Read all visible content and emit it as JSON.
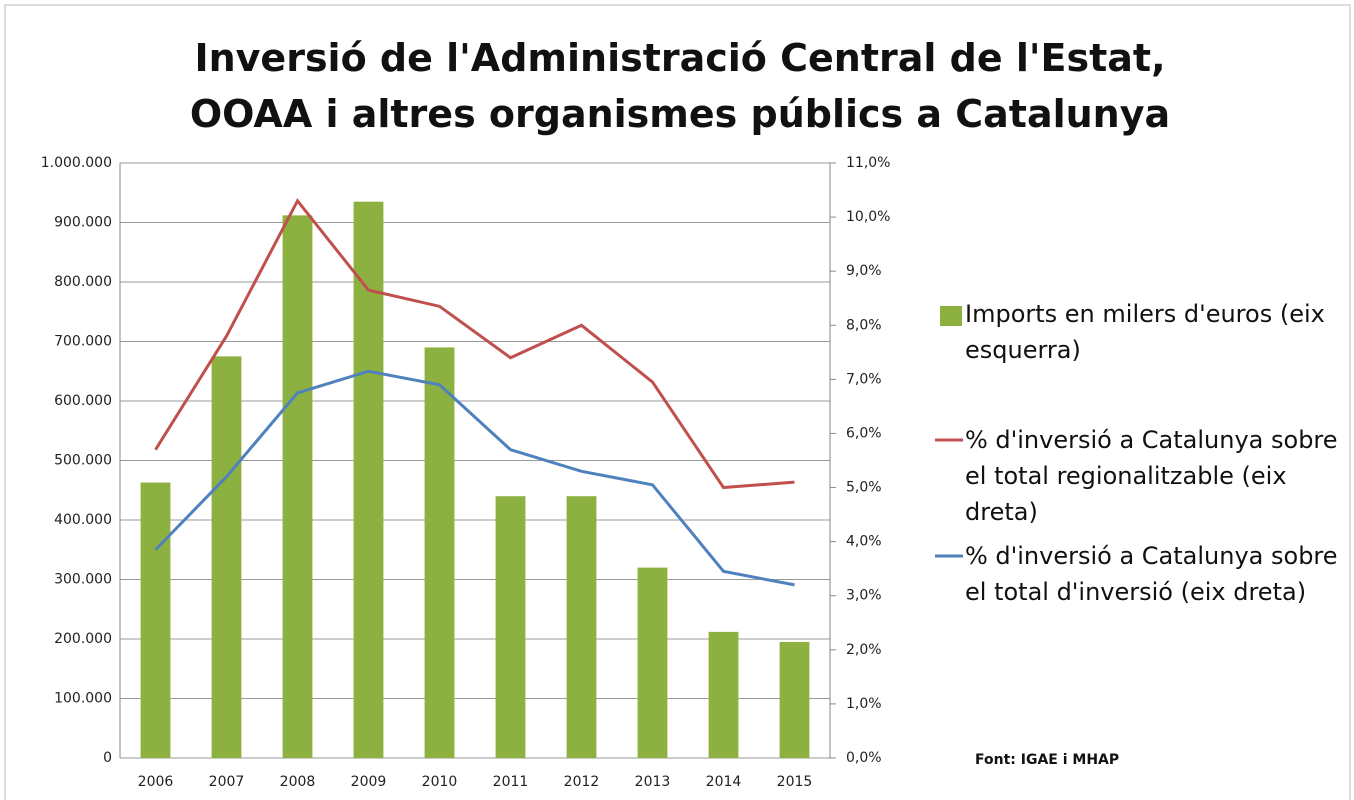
{
  "chart_data": {
    "type": "bar+line",
    "title": "Inversió de l'Administració  Central de l'Estat, OOAA i altres organismes públics a Catalunya",
    "categories": [
      "2006",
      "2007",
      "2008",
      "2009",
      "2010",
      "2011",
      "2012",
      "2013",
      "2014",
      "2015"
    ],
    "series": [
      {
        "name": "Imports en milers d'euros (eix esquerra)",
        "type": "bar",
        "color": "#8db141",
        "values": [
          463000,
          675000,
          912000,
          935000,
          690000,
          440000,
          440000,
          320000,
          212000,
          195000
        ]
      },
      {
        "name": "% d'inversió a Catalunya sobre el total regionalitzable (eix dreta)",
        "type": "line",
        "axis": "y2",
        "color": "#c0504d",
        "values": [
          5.7,
          7.8,
          10.3,
          8.65,
          8.35,
          7.4,
          8.0,
          6.95,
          5.0,
          5.1
        ]
      },
      {
        "name": "% d'inversió a Catalunya sobre el total d'inversió (eix dreta)",
        "type": "line",
        "axis": "y2",
        "color": "#4f81bd",
        "values": [
          3.85,
          5.2,
          6.75,
          7.15,
          6.9,
          5.7,
          5.3,
          5.05,
          3.45,
          3.2
        ]
      }
    ],
    "ylim": [
      0,
      1000000
    ],
    "yticks": [
      0,
      {
        "value": 100000,
        "label": "100.000"
      },
      {
        "value": 200000,
        "label": "200.000"
      },
      {
        "value": 300000,
        "label": "300.000"
      },
      {
        "value": 400000,
        "label": "400.000"
      },
      {
        "value": 500000,
        "label": "500.000"
      },
      {
        "value": 600000,
        "label": "600.000"
      },
      {
        "value": 700000,
        "label": "700.000"
      },
      {
        "value": 800000,
        "label": "800.000"
      },
      {
        "value": 900000,
        "label": "900.000"
      },
      {
        "value": 1000000,
        "label": "1.000.000"
      }
    ],
    "y2lim": [
      0,
      11
    ],
    "y2ticks": [
      {
        "value": 0,
        "label": "0,0%"
      },
      {
        "value": 1,
        "label": "1,0%"
      },
      {
        "value": 2,
        "label": "2,0%"
      },
      {
        "value": 3,
        "label": "3,0%"
      },
      {
        "value": 4,
        "label": "4,0%"
      },
      {
        "value": 5,
        "label": "5,0%"
      },
      {
        "value": 6,
        "label": "6,0%"
      },
      {
        "value": 7,
        "label": "7,0%"
      },
      {
        "value": 8,
        "label": "8,0%"
      },
      {
        "value": 9,
        "label": "9,0%"
      },
      {
        "value": 10,
        "label": "10,0%"
      },
      {
        "value": 11,
        "label": "11,0%"
      }
    ],
    "grid": true,
    "legend": "right",
    "annotations": [
      "Font: IGAE i MHAP"
    ]
  }
}
